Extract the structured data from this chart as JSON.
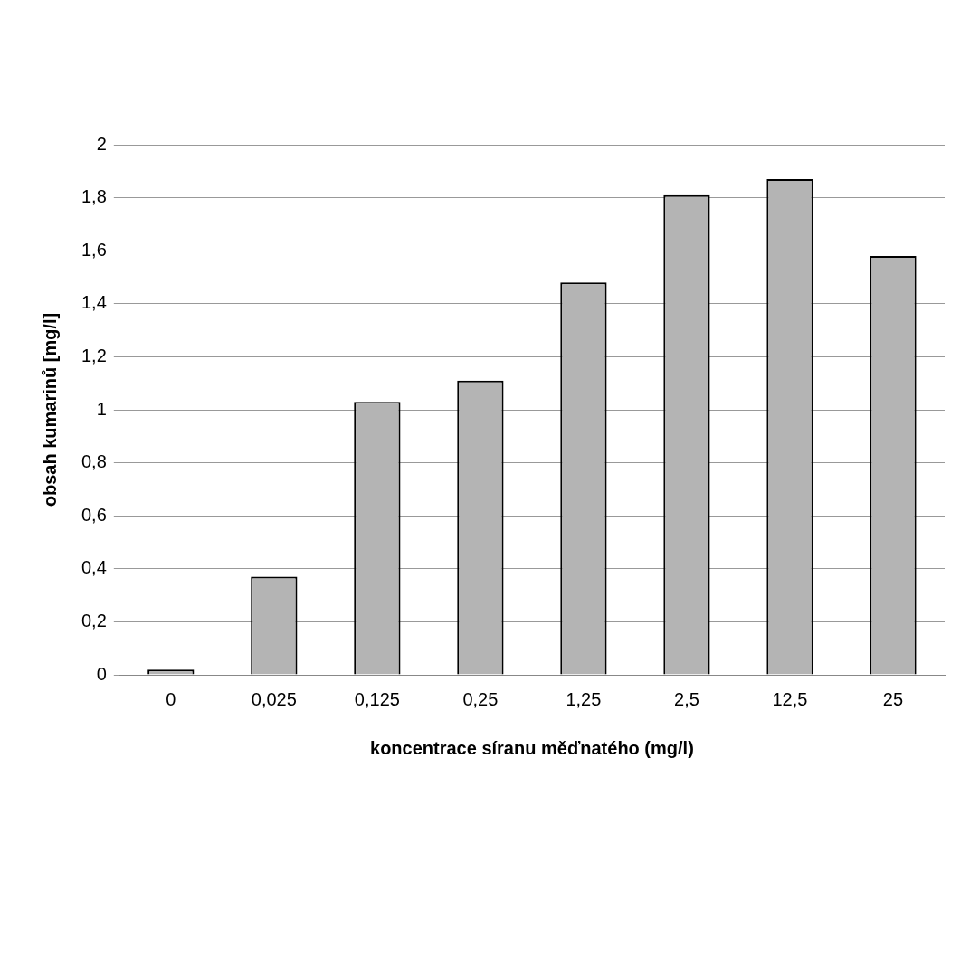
{
  "chart_data": {
    "type": "bar",
    "xlabel": "koncentrace síranu měďnatého (mg/l)",
    "ylabel": "obsah kumarinů [mg/l]",
    "categories": [
      "0",
      "0,025",
      "0,125",
      "0,25",
      "1,25",
      "2,5",
      "12,5",
      "25"
    ],
    "values": [
      0.02,
      0.37,
      1.03,
      1.11,
      1.48,
      1.81,
      1.87,
      1.58
    ],
    "color": "#b4b4b4",
    "ylim": [
      0,
      2
    ],
    "yticks": [
      {
        "value": 0,
        "label": "0"
      },
      {
        "value": 0.2,
        "label": "0,2"
      },
      {
        "value": 0.4,
        "label": "0,4"
      },
      {
        "value": 0.6,
        "label": "0,6"
      },
      {
        "value": 0.8,
        "label": "0,8"
      },
      {
        "value": 1,
        "label": "1"
      },
      {
        "value": 1.2,
        "label": "1,2"
      },
      {
        "value": 1.4,
        "label": "1,4"
      },
      {
        "value": 1.6,
        "label": "1,6"
      },
      {
        "value": 1.8,
        "label": "1,8"
      },
      {
        "value": 2,
        "label": "2"
      }
    ],
    "grid": "y"
  }
}
